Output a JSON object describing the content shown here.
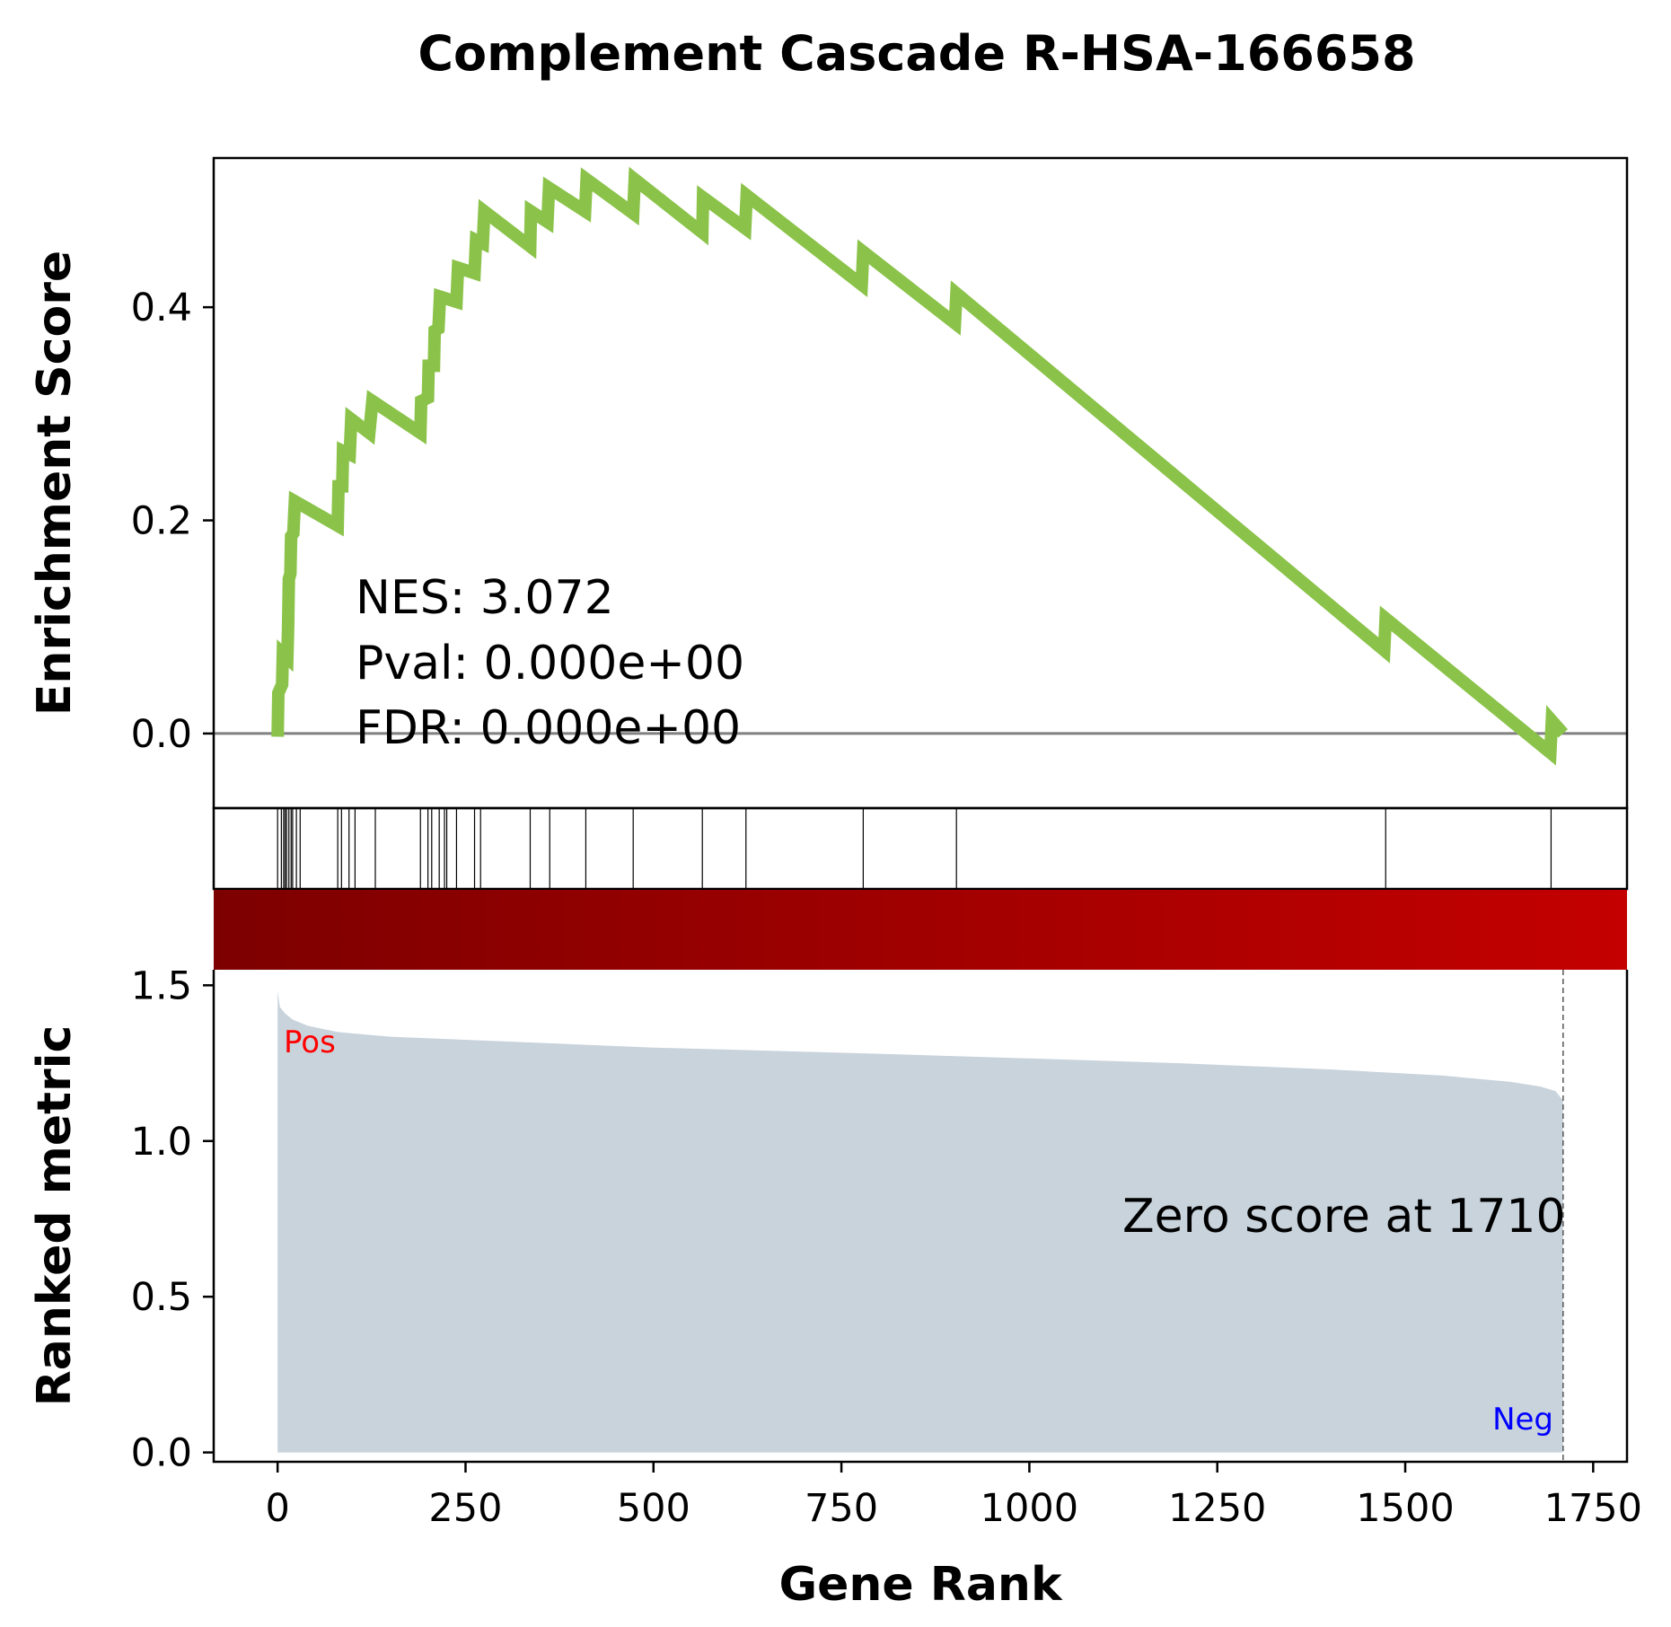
{
  "chart_data": {
    "type": "line",
    "title": "Complement Cascade R-HSA-166658",
    "xlabel": "Gene Rank",
    "ylabel_top": "Enrichment Score",
    "ylabel_bottom": "Ranked metric",
    "xlim": [
      -85,
      1795
    ],
    "xticks": [
      0,
      250,
      500,
      750,
      1000,
      1250,
      1500,
      1750
    ],
    "es_ylim": [
      -0.07,
      0.54
    ],
    "es_yticks": [
      0.0,
      0.2,
      0.4
    ],
    "metric_ylim": [
      -0.03,
      1.55
    ],
    "metric_yticks": [
      0.0,
      0.5,
      1.0,
      1.5
    ],
    "stats": {
      "nes": "NES: 3.072",
      "pval": "Pval: 0.000e+00",
      "fdr": "FDR: 0.000e+00"
    },
    "hits": [
      0,
      5,
      8,
      10,
      12,
      15,
      18,
      20,
      25,
      30,
      80,
      85,
      95,
      103,
      130,
      190,
      200,
      205,
      215,
      222,
      225,
      238,
      262,
      270,
      336,
      362,
      410,
      473,
      565,
      623,
      779,
      903,
      1474,
      1694
    ],
    "es_curve": [
      [
        0,
        -0.003
      ],
      [
        1,
        0.038
      ],
      [
        6,
        0.046
      ],
      [
        7,
        0.075
      ],
      [
        13,
        0.071
      ],
      [
        14,
        0.1
      ],
      [
        15,
        0.145
      ],
      [
        17,
        0.15
      ],
      [
        18,
        0.185
      ],
      [
        21,
        0.188
      ],
      [
        23,
        0.218
      ],
      [
        80,
        0.195
      ],
      [
        81,
        0.232
      ],
      [
        86,
        0.232
      ],
      [
        87,
        0.265
      ],
      [
        96,
        0.262
      ],
      [
        98,
        0.295
      ],
      [
        122,
        0.282
      ],
      [
        126,
        0.312
      ],
      [
        190,
        0.282
      ],
      [
        191,
        0.312
      ],
      [
        200,
        0.315
      ],
      [
        201,
        0.345
      ],
      [
        208,
        0.345
      ],
      [
        209,
        0.378
      ],
      [
        214,
        0.38
      ],
      [
        216,
        0.41
      ],
      [
        238,
        0.405
      ],
      [
        240,
        0.437
      ],
      [
        262,
        0.432
      ],
      [
        264,
        0.463
      ],
      [
        273,
        0.46
      ],
      [
        275,
        0.49
      ],
      [
        336,
        0.457
      ],
      [
        337,
        0.49
      ],
      [
        359,
        0.48
      ],
      [
        361,
        0.512
      ],
      [
        409,
        0.49
      ],
      [
        411,
        0.52
      ],
      [
        473,
        0.488
      ],
      [
        475,
        0.52
      ],
      [
        565,
        0.47
      ],
      [
        566,
        0.503
      ],
      [
        622,
        0.474
      ],
      [
        624,
        0.505
      ],
      [
        777,
        0.421
      ],
      [
        779,
        0.452
      ],
      [
        901,
        0.385
      ],
      [
        903,
        0.413
      ],
      [
        1472,
        0.078
      ],
      [
        1474,
        0.108
      ],
      [
        1693,
        -0.018
      ],
      [
        1695,
        0.012
      ],
      [
        1710,
        0.0
      ]
    ],
    "metric_curve": [
      [
        0,
        1.48
      ],
      [
        3,
        1.43
      ],
      [
        10,
        1.41
      ],
      [
        20,
        1.39
      ],
      [
        40,
        1.37
      ],
      [
        80,
        1.35
      ],
      [
        150,
        1.335
      ],
      [
        300,
        1.32
      ],
      [
        500,
        1.3
      ],
      [
        800,
        1.28
      ],
      [
        1000,
        1.265
      ],
      [
        1200,
        1.25
      ],
      [
        1400,
        1.23
      ],
      [
        1550,
        1.21
      ],
      [
        1640,
        1.19
      ],
      [
        1680,
        1.175
      ],
      [
        1700,
        1.16
      ],
      [
        1710,
        1.13
      ]
    ],
    "zero_score_rank": 1710,
    "zero_score_label": "Zero score at 1710",
    "pos_label": "Pos",
    "neg_label": "Neg",
    "colors": {
      "es_line": "#8bc34a",
      "zero_line": "#808080",
      "metric_fill": "#c8d3dc",
      "heat_start": "#7d0000",
      "heat_end": "#c40000",
      "pos": "#ff0000",
      "neg": "#0000ff"
    }
  }
}
